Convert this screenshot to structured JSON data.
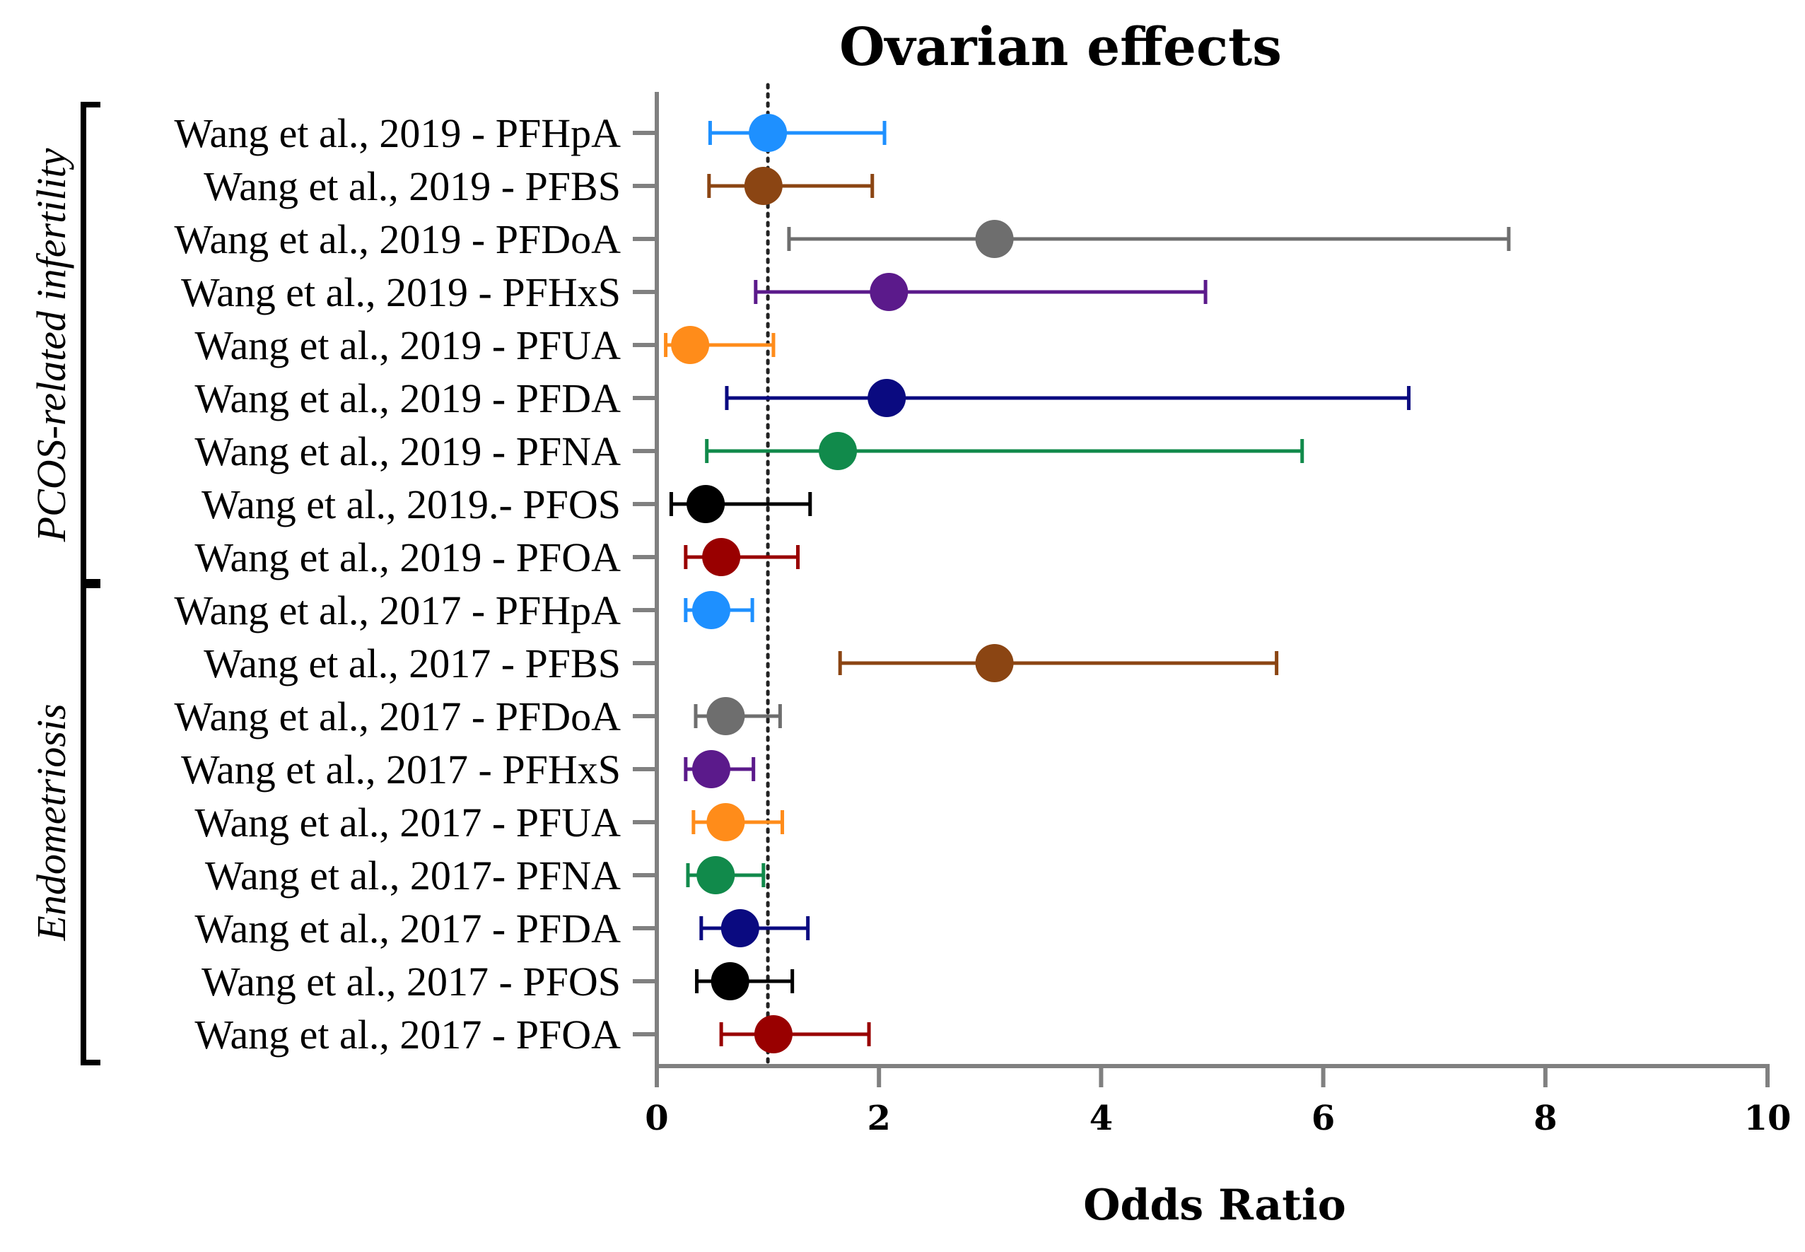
{
  "chart_data": {
    "type": "forest",
    "title": "Ovarian effects",
    "xlabel": "Odds Ratio",
    "ylabel": "",
    "xlim": [
      0,
      10
    ],
    "xticks": [
      0,
      2,
      4,
      6,
      8,
      10
    ],
    "reference_line": 1,
    "groups": [
      {
        "label": "PCOS-related infertility",
        "rows": [
          {
            "label": "Wang et al., 2019 - PFHpA",
            "or": 1.0,
            "lo": 0.48,
            "hi": 2.05,
            "color": "#1e90ff"
          },
          {
            "label": "Wang et al., 2019 - PFBS",
            "or": 0.96,
            "lo": 0.47,
            "hi": 1.94,
            "color": "#8b4513"
          },
          {
            "label": "Wang et al., 2019 - PFDoA",
            "or": 3.04,
            "lo": 1.19,
            "hi": 7.67,
            "color": "#6e6e6e"
          },
          {
            "label": "Wang et al., 2019 - PFHxS",
            "or": 2.09,
            "lo": 0.89,
            "hi": 4.94,
            "color": "#5b1a8b"
          },
          {
            "label": "Wang et al., 2019 - PFUA",
            "or": 0.3,
            "lo": 0.08,
            "hi": 1.05,
            "color": "#ff8c1a"
          },
          {
            "label": "Wang et al., 2019 - PFDA",
            "or": 2.07,
            "lo": 0.63,
            "hi": 6.77,
            "color": "#0a0a80"
          },
          {
            "label": "Wang et al., 2019 - PFNA",
            "or": 1.63,
            "lo": 0.45,
            "hi": 5.81,
            "color": "#118a4b"
          },
          {
            "label": "Wang et al., 2019.- PFOS",
            "or": 0.44,
            "lo": 0.13,
            "hi": 1.38,
            "color": "#000000"
          },
          {
            "label": "Wang et al., 2019 - PFOA",
            "or": 0.58,
            "lo": 0.26,
            "hi": 1.27,
            "color": "#990000"
          }
        ]
      },
      {
        "label": "Endometriosis",
        "rows": [
          {
            "label": "Wang et al., 2017 - PFHpA",
            "or": 0.49,
            "lo": 0.26,
            "hi": 0.86,
            "color": "#1e90ff"
          },
          {
            "label": "Wang et al., 2017 - PFBS",
            "or": 3.04,
            "lo": 1.65,
            "hi": 5.58,
            "color": "#8b4513"
          },
          {
            "label": "Wang et al., 2017 - PFDoA",
            "or": 0.62,
            "lo": 0.35,
            "hi": 1.11,
            "color": "#6e6e6e"
          },
          {
            "label": "Wang et al., 2017 - PFHxS",
            "or": 0.49,
            "lo": 0.26,
            "hi": 0.87,
            "color": "#5b1a8b"
          },
          {
            "label": "Wang et al., 2017 - PFUA",
            "or": 0.62,
            "lo": 0.33,
            "hi": 1.13,
            "color": "#ff8c1a"
          },
          {
            "label": "Wang et al., 2017- PFNA",
            "or": 0.53,
            "lo": 0.28,
            "hi": 0.96,
            "color": "#118a4b"
          },
          {
            "label": "Wang et al., 2017 - PFDA",
            "or": 0.75,
            "lo": 0.4,
            "hi": 1.36,
            "color": "#0a0a80"
          },
          {
            "label": "Wang et al., 2017 - PFOS",
            "or": 0.66,
            "lo": 0.36,
            "hi": 1.22,
            "color": "#000000"
          },
          {
            "label": "Wang et al., 2017 - PFOA",
            "or": 1.05,
            "lo": 0.58,
            "hi": 1.91,
            "color": "#990000"
          }
        ]
      }
    ]
  },
  "colors": {
    "axis": "#808080",
    "reference_line": "#222222",
    "bracket": "#000000"
  }
}
